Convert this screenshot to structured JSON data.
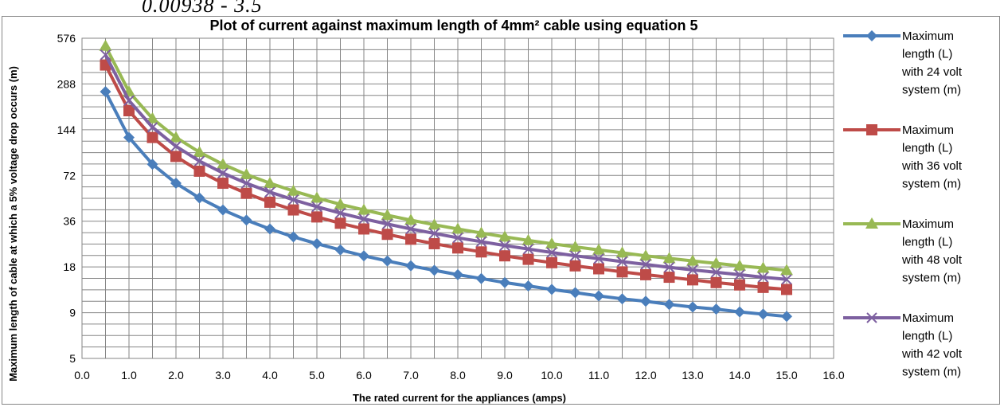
{
  "page": {
    "top_fragment": "0.00938 - 3.5"
  },
  "chart_data": {
    "type": "line",
    "title": "Plot of current against maximum length of 4mm² cable using equation 5",
    "xlabel": "The rated current for the appliances (amps)",
    "ylabel": "Maximum length of cable at which a 5% voltage drop occurs (m)",
    "xlim": [
      0,
      16
    ],
    "x_ticks": [
      "0.0",
      "1.0",
      "2.0",
      "3.0",
      "4.0",
      "5.0",
      "6.0",
      "7.0",
      "8.0",
      "9.0",
      "10.0",
      "11.0",
      "12.0",
      "13.0",
      "14.0",
      "15.0",
      "16.0"
    ],
    "y_scale": "log2",
    "ylim": [
      4.5,
      576
    ],
    "y_ticks": [
      "576",
      "288",
      "144",
      "72",
      "36",
      "18",
      "9",
      "5"
    ],
    "y_tick_values": [
      576,
      288,
      144,
      72,
      36,
      18,
      9,
      4.5
    ],
    "grid": true,
    "legend_position": "right",
    "x": [
      0.5,
      1.0,
      1.5,
      2.0,
      2.5,
      3.0,
      3.5,
      4.0,
      4.5,
      5.0,
      5.5,
      6.0,
      6.5,
      7.0,
      7.5,
      8.0,
      8.5,
      9.0,
      9.5,
      10.0,
      10.5,
      11.0,
      11.5,
      12.0,
      12.5,
      13.0,
      13.5,
      14.0,
      14.5,
      15.0
    ],
    "series": [
      {
        "name": "Maximum length (L) with 24 volt system (m)",
        "color": "#4a7ebb",
        "marker": "diamond",
        "values": [
          256.0,
          128.0,
          85.3,
          64.0,
          51.2,
          42.7,
          36.6,
          32.0,
          28.4,
          25.6,
          23.3,
          21.3,
          19.7,
          18.3,
          17.1,
          16.0,
          15.1,
          14.2,
          13.5,
          12.8,
          12.2,
          11.6,
          11.1,
          10.7,
          10.2,
          9.8,
          9.5,
          9.1,
          8.8,
          8.5
        ]
      },
      {
        "name": "Maximum length (L) with 36 volt system (m)",
        "color": "#be4b48",
        "marker": "square",
        "values": [
          384.0,
          192.0,
          128.0,
          96.0,
          76.8,
          64.0,
          54.9,
          48.0,
          42.7,
          38.4,
          34.9,
          32.0,
          29.5,
          27.4,
          25.6,
          24.0,
          22.6,
          21.3,
          20.2,
          19.2,
          18.3,
          17.5,
          16.7,
          16.0,
          15.4,
          14.8,
          14.2,
          13.7,
          13.2,
          12.8
        ]
      },
      {
        "name": "Maximum length (L) with 48 volt system (m)",
        "color": "#98b954",
        "marker": "triangle",
        "values": [
          512.0,
          256.0,
          170.7,
          128.0,
          102.4,
          85.3,
          73.1,
          64.0,
          56.9,
          51.2,
          46.5,
          42.7,
          39.4,
          36.6,
          34.1,
          32.0,
          30.1,
          28.4,
          26.9,
          25.6,
          24.4,
          23.3,
          22.3,
          21.3,
          20.5,
          19.7,
          19.0,
          18.3,
          17.7,
          17.1
        ]
      },
      {
        "name": "Maximum length (L) with 42 volt system (m)",
        "color": "#7d60a0",
        "marker": "x",
        "values": [
          448.0,
          224.0,
          149.3,
          112.0,
          89.6,
          74.7,
          64.0,
          56.0,
          49.8,
          44.8,
          40.7,
          37.3,
          34.5,
          32.0,
          29.9,
          28.0,
          26.4,
          24.9,
          23.6,
          22.4,
          21.3,
          20.4,
          19.5,
          18.7,
          17.9,
          17.2,
          16.6,
          16.0,
          15.4,
          14.9
        ]
      }
    ],
    "legend_lines": [
      [
        "Maximum",
        "length (L)",
        "with 24 volt",
        "system (m)"
      ],
      [
        "Maximum",
        "length (L)",
        "with 36 volt",
        "system (m)"
      ],
      [
        "Maximum",
        "length (L)",
        "with 48 volt",
        "system (m)"
      ],
      [
        "Maximum",
        "length (L)",
        "with 42 volt",
        "system (m)"
      ]
    ]
  }
}
